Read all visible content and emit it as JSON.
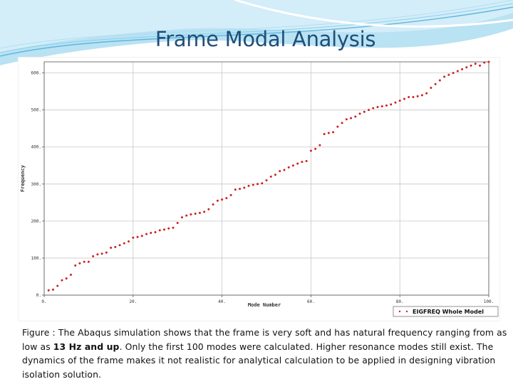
{
  "slide": {
    "title": "Frame Modal Analysis"
  },
  "caption": {
    "part1": "Figure : The Abaqus simulation shows that the frame is very soft and has natural frequency ranging from as low as ",
    "bold": "13 Hz and up",
    "part2": ". Only the first 100 modes were calculated. Higher resonance modes still exist. The dynamics of the frame makes it not realistic for analytical calculation to be applied in designing vibration isolation solution."
  },
  "chart_data": {
    "type": "scatter",
    "title": "",
    "xlabel": "Mode Number",
    "ylabel": "Frequency",
    "xlim": [
      0,
      100
    ],
    "ylim": [
      0,
      630
    ],
    "xticks": [
      0,
      20,
      40,
      60,
      80,
      100
    ],
    "yticks": [
      0,
      100,
      200,
      300,
      400,
      500,
      600
    ],
    "xtick_labels": [
      "0.",
      "20.",
      "40.",
      "60.",
      "80.",
      "100."
    ],
    "ytick_labels": [
      "0.",
      "100.",
      "200.",
      "300.",
      "400.",
      "500.",
      "600."
    ],
    "grid": true,
    "legend_position": "bottom-right",
    "marker_color": "#cc2222",
    "series": [
      {
        "name": "EIGFREQ Whole Model",
        "x": [
          1,
          2,
          3,
          4,
          5,
          6,
          7,
          8,
          9,
          10,
          11,
          12,
          13,
          14,
          15,
          16,
          17,
          18,
          19,
          20,
          21,
          22,
          23,
          24,
          25,
          26,
          27,
          28,
          29,
          30,
          31,
          32,
          33,
          34,
          35,
          36,
          37,
          38,
          39,
          40,
          41,
          42,
          43,
          44,
          45,
          46,
          47,
          48,
          49,
          50,
          51,
          52,
          53,
          54,
          55,
          56,
          57,
          58,
          59,
          60,
          61,
          62,
          63,
          64,
          65,
          66,
          67,
          68,
          69,
          70,
          71,
          72,
          73,
          74,
          75,
          76,
          77,
          78,
          79,
          80,
          81,
          82,
          83,
          84,
          85,
          86,
          87,
          88,
          89,
          90,
          91,
          92,
          93,
          94,
          95,
          96,
          97,
          98,
          99,
          100
        ],
        "y": [
          13,
          15,
          25,
          40,
          45,
          55,
          80,
          86,
          90,
          90,
          105,
          110,
          112,
          115,
          128,
          130,
          135,
          140,
          145,
          155,
          157,
          160,
          165,
          168,
          170,
          175,
          177,
          180,
          182,
          195,
          210,
          215,
          218,
          220,
          222,
          225,
          232,
          245,
          255,
          258,
          262,
          270,
          285,
          287,
          290,
          295,
          298,
          300,
          302,
          310,
          320,
          325,
          335,
          338,
          345,
          350,
          355,
          360,
          362,
          390,
          395,
          405,
          435,
          438,
          440,
          455,
          465,
          475,
          478,
          482,
          490,
          495,
          500,
          505,
          508,
          510,
          512,
          515,
          520,
          525,
          530,
          535,
          535,
          537,
          540,
          545,
          560,
          570,
          580,
          590,
          595,
          600,
          605,
          610,
          615,
          620,
          625,
          620,
          628,
          630
        ]
      }
    ]
  }
}
